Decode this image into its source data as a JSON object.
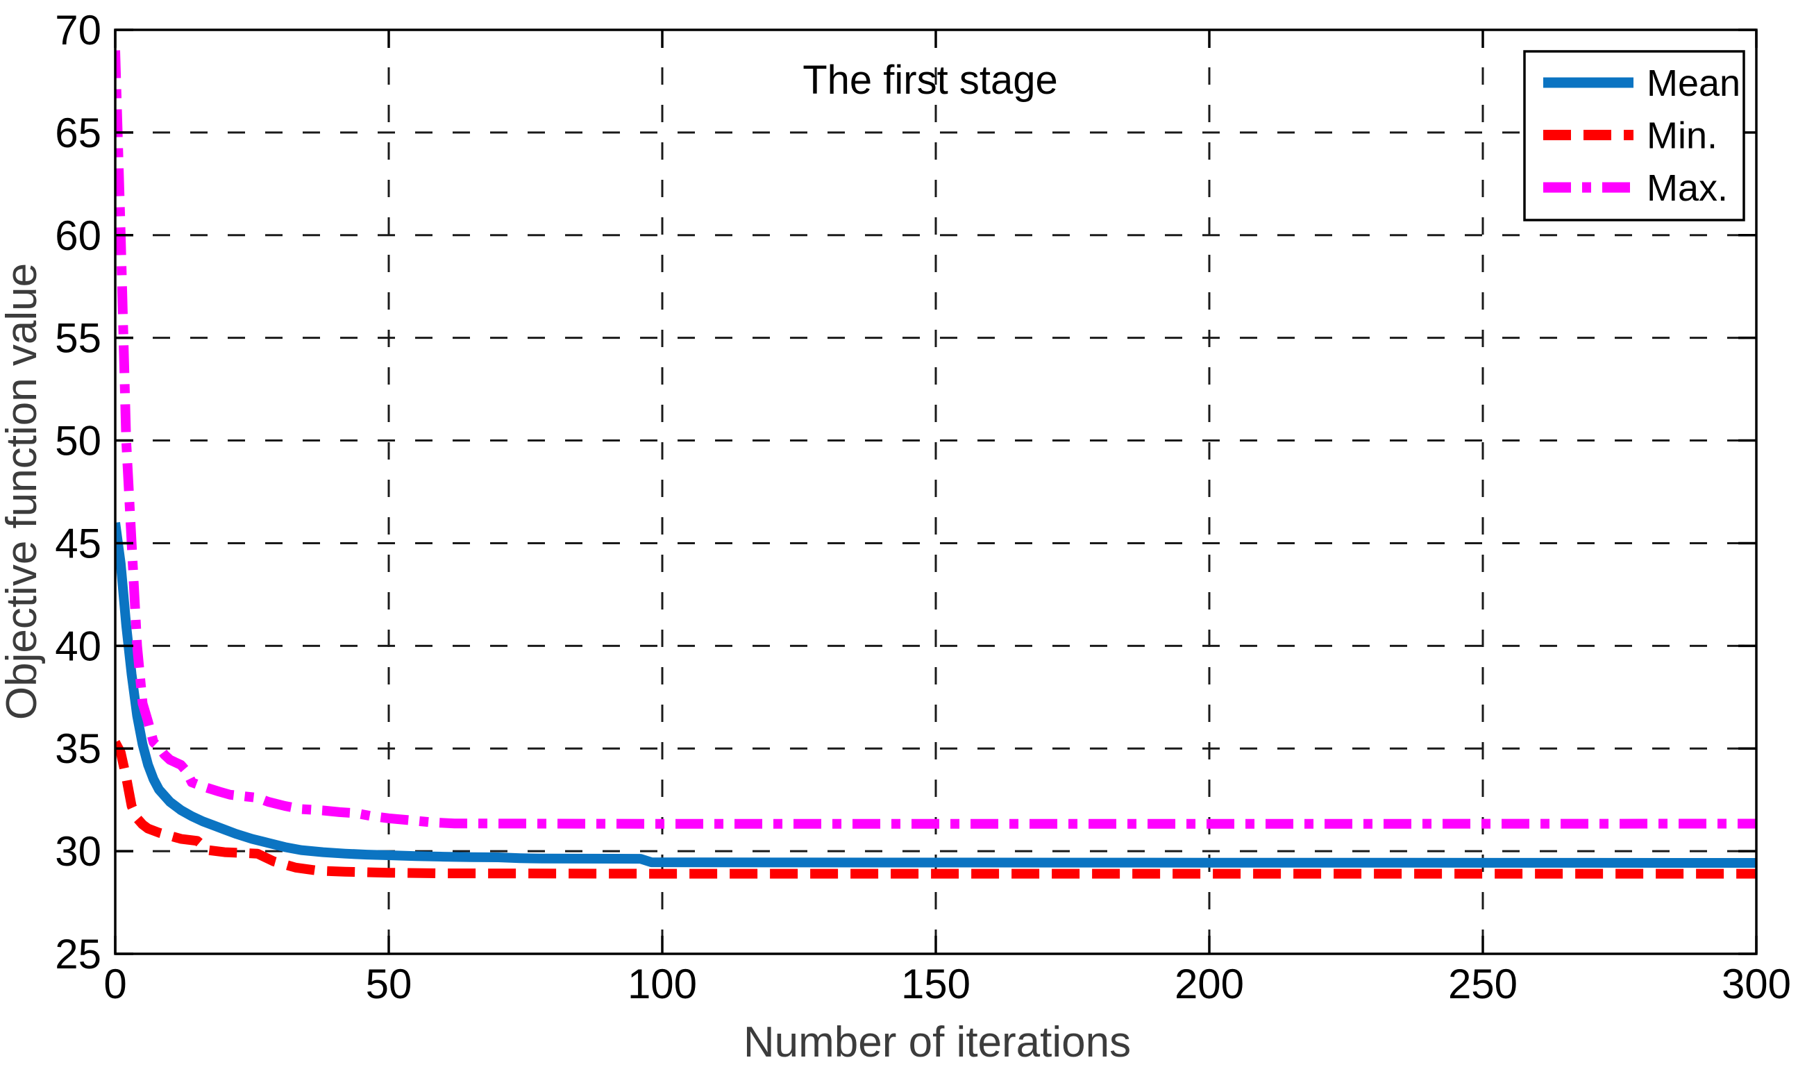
{
  "chart_data": {
    "type": "line",
    "title": "The first stage",
    "xlabel": "Number of iterations",
    "ylabel": "Objective function value",
    "xlim": [
      0,
      300
    ],
    "ylim": [
      25,
      70
    ],
    "xticks": [
      0,
      50,
      100,
      150,
      200,
      250,
      300
    ],
    "yticks": [
      25,
      30,
      35,
      40,
      45,
      50,
      55,
      60,
      65,
      70
    ],
    "grid": true,
    "grid_style": "dashed",
    "legend_position": "top-right",
    "legend": {
      "items": [
        "Mean",
        "Min.",
        "Max."
      ]
    },
    "colors": {
      "mean": "#0b74c2",
      "min": "#ff0000",
      "max": "#ff00ff",
      "axis": "#000000",
      "grid": "#1a1a1a",
      "axis_label_text": "#3c3c3c"
    },
    "series": [
      {
        "name": "Mean",
        "color": "#0b74c2",
        "style": "solid",
        "points": [
          [
            0,
            46
          ],
          [
            1,
            44
          ],
          [
            2,
            41
          ],
          [
            3,
            38.6
          ],
          [
            4,
            36.6
          ],
          [
            5,
            35.2
          ],
          [
            6,
            34.2
          ],
          [
            7,
            33.5
          ],
          [
            8,
            33.0
          ],
          [
            10,
            32.4
          ],
          [
            12,
            32.0
          ],
          [
            14,
            31.7
          ],
          [
            16,
            31.45
          ],
          [
            18,
            31.25
          ],
          [
            20,
            31.05
          ],
          [
            22,
            30.85
          ],
          [
            25,
            30.6
          ],
          [
            28,
            30.4
          ],
          [
            31,
            30.2
          ],
          [
            34,
            30.05
          ],
          [
            38,
            29.95
          ],
          [
            42,
            29.88
          ],
          [
            46,
            29.83
          ],
          [
            50,
            29.8
          ],
          [
            55,
            29.76
          ],
          [
            60,
            29.73
          ],
          [
            65,
            29.71
          ],
          [
            70,
            29.7
          ],
          [
            74,
            29.66
          ],
          [
            78,
            29.64
          ],
          [
            96,
            29.63
          ],
          [
            98,
            29.46
          ],
          [
            120,
            29.45
          ],
          [
            200,
            29.44
          ],
          [
            300,
            29.43
          ]
        ]
      },
      {
        "name": "Min.",
        "color": "#ff0000",
        "style": "dashed",
        "points": [
          [
            0,
            35.3
          ],
          [
            1,
            34.8
          ],
          [
            2,
            33.6
          ],
          [
            3,
            32.2
          ],
          [
            4,
            31.6
          ],
          [
            5,
            31.3
          ],
          [
            6,
            31.1
          ],
          [
            8,
            30.9
          ],
          [
            10,
            30.75
          ],
          [
            12,
            30.6
          ],
          [
            15,
            30.5
          ],
          [
            17,
            30.05
          ],
          [
            20,
            29.95
          ],
          [
            26,
            29.88
          ],
          [
            29,
            29.5
          ],
          [
            33,
            29.2
          ],
          [
            37,
            29.05
          ],
          [
            42,
            29.0
          ],
          [
            50,
            28.95
          ],
          [
            60,
            28.92
          ],
          [
            100,
            28.9
          ],
          [
            300,
            28.9
          ]
        ]
      },
      {
        "name": "Max.",
        "color": "#ff00ff",
        "style": "dashdot",
        "points": [
          [
            0,
            69
          ],
          [
            1,
            60
          ],
          [
            2,
            50
          ],
          [
            3,
            45
          ],
          [
            4,
            40
          ],
          [
            5,
            37.2
          ],
          [
            6,
            36.3
          ],
          [
            7,
            35.3
          ],
          [
            8,
            35.05
          ],
          [
            9,
            34.7
          ],
          [
            10,
            34.45
          ],
          [
            12,
            34.2
          ],
          [
            13,
            33.9
          ],
          [
            14,
            33.35
          ],
          [
            16,
            33.15
          ],
          [
            19,
            32.9
          ],
          [
            21,
            32.75
          ],
          [
            26,
            32.6
          ],
          [
            28,
            32.4
          ],
          [
            31,
            32.2
          ],
          [
            34,
            32.05
          ],
          [
            38,
            31.98
          ],
          [
            41,
            31.9
          ],
          [
            44,
            31.85
          ],
          [
            47,
            31.7
          ],
          [
            50,
            31.6
          ],
          [
            54,
            31.5
          ],
          [
            58,
            31.4
          ],
          [
            62,
            31.35
          ],
          [
            100,
            31.33
          ],
          [
            200,
            31.33
          ],
          [
            300,
            31.34
          ]
        ]
      }
    ]
  }
}
